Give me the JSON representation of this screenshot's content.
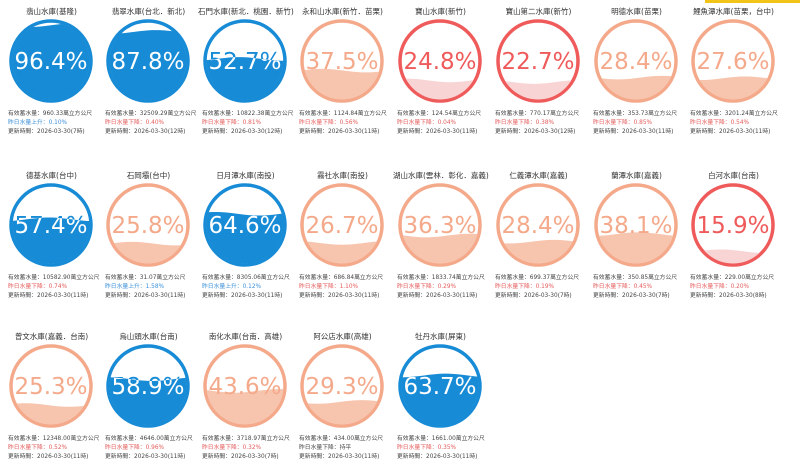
{
  "theme": {
    "accent_bar": "#f2c417",
    "high": {
      "ring": "#178bd6",
      "fill": "#178bd6",
      "text_over": "#ffffff",
      "text_under": "#178bd6"
    },
    "mid": {
      "ring": "#f4a98a",
      "fill": "#f7c4ae",
      "text_over": "#f4a98a",
      "text_under": "#f4a98a"
    },
    "low": {
      "ring": "#ef5a5a",
      "fill": "#f9d4d4",
      "text_over": "#ef5a5a",
      "text_under": "#ef5a5a"
    }
  },
  "labels": {
    "storage_prefix": "有效蓄水量：",
    "change_prefix_up": "昨日水量上升：",
    "change_prefix_down": "昨日水量下降：",
    "update_prefix": "更新時間："
  },
  "reservoirs": [
    {
      "name": "翡山水庫(基隆)",
      "pct": 96.4,
      "level": "high",
      "text_on_fill": true,
      "storage": "960.33萬立方公尺",
      "change_dir": "up",
      "change": "0.10%",
      "updated": "2026-03-30(7時)"
    },
    {
      "name": "翡翠水庫(台北．新北)",
      "pct": 87.8,
      "level": "high",
      "text_on_fill": true,
      "storage": "32509.29萬立方公尺",
      "change_dir": "down",
      "change": "0.40%",
      "updated": "2026-03-30(12時)"
    },
    {
      "name": "石門水庫(新北．桃園．新竹)",
      "pct": 52.7,
      "level": "high",
      "text_on_fill": false,
      "storage": "10822.38萬立方公尺",
      "change_dir": "down",
      "change": "0.81%",
      "updated": "2026-03-30(12時)"
    },
    {
      "name": "永和山水庫(新竹．苗栗)",
      "pct": 37.5,
      "level": "mid",
      "text_on_fill": false,
      "storage": "1124.84萬立方公尺",
      "change_dir": "down",
      "change": "0.56%",
      "updated": "2026-03-30(11時)"
    },
    {
      "name": "寶山水庫(新竹)",
      "pct": 24.8,
      "level": "low",
      "text_on_fill": false,
      "storage": "124.54萬立方公尺",
      "change_dir": "down",
      "change": "0.04%",
      "updated": "2026-03-30(11時)"
    },
    {
      "name": "寶山第二水庫(新竹)",
      "pct": 22.7,
      "level": "low",
      "text_on_fill": false,
      "storage": "770.17萬立方公尺",
      "change_dir": "down",
      "change": "0.38%",
      "updated": "2026-03-30(12時)"
    },
    {
      "name": "明德水庫(苗栗)",
      "pct": 28.4,
      "level": "mid",
      "text_on_fill": false,
      "storage": "353.73萬立方公尺",
      "change_dir": "down",
      "change": "0.85%",
      "updated": "2026-03-30(11時)"
    },
    {
      "name": "鯉魚潭水庫(苗栗，台中)",
      "pct": 27.6,
      "level": "mid",
      "text_on_fill": false,
      "storage": "3201.24萬立方公尺",
      "change_dir": "down",
      "change": "0.54%",
      "updated": "2026-03-30(11時)"
    },
    {
      "name": "德基水庫(台中)",
      "pct": 57.4,
      "level": "high",
      "text_on_fill": false,
      "storage": "10582.90萬立方公尺",
      "change_dir": "down",
      "change": "0.74%",
      "updated": "2026-03-30(11時)"
    },
    {
      "name": "石岡壩(台中)",
      "pct": 25.8,
      "level": "mid",
      "text_on_fill": false,
      "storage": "31.07萬立方公尺",
      "change_dir": "up",
      "change": "1.58%",
      "updated": "2026-03-30(11時)"
    },
    {
      "name": "日月潭水庫(南投)",
      "pct": 64.6,
      "level": "high",
      "text_on_fill": false,
      "storage": "8305.06萬立方公尺",
      "change_dir": "up",
      "change": "0.12%",
      "updated": "2026-03-30(11時)"
    },
    {
      "name": "霧社水庫(南投)",
      "pct": 26.7,
      "level": "mid",
      "text_on_fill": false,
      "storage": "686.84萬立方公尺",
      "change_dir": "down",
      "change": "1.10%",
      "updated": "2026-03-30(11時)"
    },
    {
      "name": "湖山水庫(雲林．彰化．嘉義)",
      "pct": 36.3,
      "level": "mid",
      "text_on_fill": false,
      "storage": "1833.74萬立方公尺",
      "change_dir": "down",
      "change": "0.29%",
      "updated": "2026-03-30(11時)"
    },
    {
      "name": "仁義潭水庫(嘉義)",
      "pct": 28.4,
      "level": "mid",
      "text_on_fill": false,
      "storage": "699.37萬立方公尺",
      "change_dir": "down",
      "change": "0.19%",
      "updated": "2026-03-30(7時)"
    },
    {
      "name": "蘭潭水庫(嘉義)",
      "pct": 38.1,
      "level": "mid",
      "text_on_fill": false,
      "storage": "350.85萬立方公尺",
      "change_dir": "down",
      "change": "0.45%",
      "updated": "2026-03-30(7時)"
    },
    {
      "name": "白河水庫(台南)",
      "pct": 15.9,
      "level": "low",
      "text_on_fill": false,
      "storage": "229.00萬立方公尺",
      "change_dir": "down",
      "change": "0.20%",
      "updated": "2026-03-30(8時)"
    },
    {
      "name": "曾文水庫(嘉義．台南)",
      "pct": 25.3,
      "level": "mid",
      "text_on_fill": false,
      "storage": "12348.00萬立方公尺",
      "change_dir": "down",
      "change": "0.52%",
      "updated": "2026-03-30(11時)"
    },
    {
      "name": "烏山頭水庫(台南)",
      "pct": 58.9,
      "level": "high",
      "text_on_fill": false,
      "storage": "4646.00萬立方公尺",
      "change_dir": "down",
      "change": "0.96%",
      "updated": "2026-03-30(11時)"
    },
    {
      "name": "南化水庫(台南．高雄)",
      "pct": 43.6,
      "level": "mid",
      "text_on_fill": false,
      "storage": "3718.97萬立方公尺",
      "change_dir": "down",
      "change": "0.32%",
      "updated": "2026-03-30(7時)"
    },
    {
      "name": "阿公店水庫(高雄)",
      "pct": 29.3,
      "level": "mid",
      "text_on_fill": false,
      "storage": "434.00萬立方公尺",
      "change_dir": "none",
      "change": "持平",
      "updated": "2026-03-30(11時)"
    },
    {
      "name": "牡丹水庫(屏東)",
      "pct": 63.7,
      "level": "high",
      "text_on_fill": false,
      "storage": "1661.00萬立方公尺",
      "change_dir": "down",
      "change": "0.35%",
      "updated": "2026-03-30(11時)"
    }
  ]
}
